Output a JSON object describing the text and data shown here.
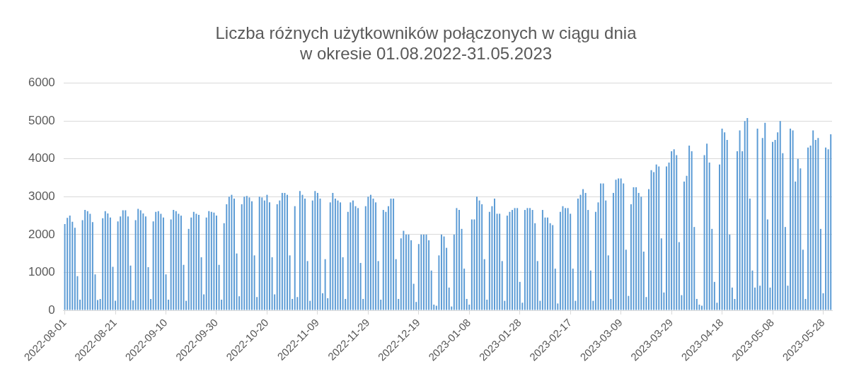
{
  "chart_data": {
    "type": "bar",
    "title": "Liczba różnych użytkowników połączonych w ciągu dnia\nw okresie 01.08.2022-31.05.2023",
    "categories": [
      "2022-08-01",
      null,
      null,
      null,
      null,
      null,
      null,
      null,
      null,
      null,
      null,
      null,
      null,
      null,
      null,
      null,
      null,
      null,
      null,
      null,
      "2022-08-21",
      null,
      null,
      null,
      null,
      null,
      null,
      null,
      null,
      null,
      null,
      null,
      null,
      null,
      null,
      null,
      null,
      null,
      null,
      null,
      "2022-09-10",
      null,
      null,
      null,
      null,
      null,
      null,
      null,
      null,
      null,
      null,
      null,
      null,
      null,
      null,
      null,
      null,
      null,
      null,
      null,
      "2022-09-30",
      null,
      null,
      null,
      null,
      null,
      null,
      null,
      null,
      null,
      null,
      null,
      null,
      null,
      null,
      null,
      null,
      null,
      null,
      null,
      "2022-10-20",
      null,
      null,
      null,
      null,
      null,
      null,
      null,
      null,
      null,
      null,
      null,
      null,
      null,
      null,
      null,
      null,
      null,
      null,
      null,
      "2022-11-09",
      null,
      null,
      null,
      null,
      null,
      null,
      null,
      null,
      null,
      null,
      null,
      null,
      null,
      null,
      null,
      null,
      null,
      null,
      null,
      "2022-11-29",
      null,
      null,
      null,
      null,
      null,
      null,
      null,
      null,
      null,
      null,
      null,
      null,
      null,
      null,
      null,
      null,
      null,
      null,
      null,
      "2022-12-19",
      null,
      null,
      null,
      null,
      null,
      null,
      null,
      null,
      null,
      null,
      null,
      null,
      null,
      null,
      null,
      null,
      null,
      null,
      null,
      "2023-01-08",
      null,
      null,
      null,
      null,
      null,
      null,
      null,
      null,
      null,
      null,
      null,
      null,
      null,
      null,
      null,
      null,
      null,
      null,
      null,
      "2023-01-28",
      null,
      null,
      null,
      null,
      null,
      null,
      null,
      null,
      null,
      null,
      null,
      null,
      null,
      null,
      null,
      null,
      null,
      null,
      null,
      "2023-02-17",
      null,
      null,
      null,
      null,
      null,
      null,
      null,
      null,
      null,
      null,
      null,
      null,
      null,
      null,
      null,
      null,
      null,
      null,
      null,
      "2023-03-09",
      null,
      null,
      null,
      null,
      null,
      null,
      null,
      null,
      null,
      null,
      null,
      null,
      null,
      null,
      null,
      null,
      null,
      null,
      null,
      "2023-03-29",
      null,
      null,
      null,
      null,
      null,
      null,
      null,
      null,
      null,
      null,
      null,
      null,
      null,
      null,
      null,
      null,
      null,
      null,
      null,
      "2023-04-18",
      null,
      null,
      null,
      null,
      null,
      null,
      null,
      null,
      null,
      null,
      null,
      null,
      null,
      null,
      null,
      null,
      null,
      null,
      null,
      "2023-05-08",
      null,
      null,
      null,
      null,
      null,
      null,
      null,
      null,
      null,
      null,
      null,
      null,
      null,
      null,
      null,
      null,
      null,
      null,
      null,
      "2023-05-28",
      null,
      null,
      null
    ],
    "values": [
      2280,
      2440,
      2500,
      2340,
      2180,
      900,
      280,
      2380,
      2650,
      2620,
      2550,
      2330,
      950,
      270,
      300,
      2430,
      2620,
      2560,
      2450,
      1150,
      250,
      2350,
      2480,
      2640,
      2640,
      2480,
      1180,
      260,
      2380,
      2680,
      2640,
      2560,
      2480,
      1140,
      300,
      2350,
      2600,
      2620,
      2550,
      2450,
      950,
      280,
      2400,
      2650,
      2620,
      2550,
      2500,
      1200,
      250,
      2150,
      2450,
      2600,
      2550,
      2520,
      1400,
      420,
      2450,
      2620,
      2600,
      2580,
      2500,
      1200,
      280,
      2300,
      2800,
      3000,
      3050,
      2950,
      1500,
      370,
      2800,
      3000,
      3020,
      2980,
      2880,
      1450,
      350,
      3000,
      2980,
      2900,
      3050,
      2850,
      1400,
      420,
      2800,
      2900,
      3100,
      3100,
      3050,
      1450,
      300,
      2750,
      350,
      3150,
      3050,
      2950,
      1300,
      250,
      2900,
      3150,
      3100,
      2950,
      450,
      1350,
      320,
      2850,
      3100,
      2950,
      2900,
      2850,
      1400,
      300,
      2600,
      2850,
      2900,
      2750,
      2700,
      1250,
      300,
      2750,
      3000,
      3050,
      2950,
      2850,
      1300,
      280,
      2650,
      2600,
      2750,
      2950,
      2950,
      1350,
      300,
      1900,
      2100,
      2000,
      2000,
      1850,
      700,
      220,
      1750,
      2000,
      2000,
      2000,
      1850,
      1050,
      150,
      120,
      1450,
      2000,
      1950,
      1650,
      600,
      100,
      2000,
      2700,
      2650,
      2150,
      1100,
      300,
      150,
      2400,
      2400,
      3000,
      2900,
      2800,
      1350,
      280,
      2600,
      2750,
      2950,
      2550,
      2550,
      1300,
      250,
      2500,
      2600,
      2650,
      2700,
      2700,
      750,
      200,
      2650,
      2700,
      2700,
      2650,
      2300,
      1300,
      250,
      2650,
      2450,
      2450,
      2300,
      2250,
      1100,
      180,
      2600,
      2750,
      2700,
      2700,
      2550,
      1100,
      250,
      2950,
      3050,
      3200,
      3100,
      2650,
      1050,
      250,
      2600,
      2850,
      3350,
      3350,
      2900,
      1450,
      300,
      3100,
      3450,
      3480,
      3480,
      3350,
      1600,
      380,
      2800,
      3250,
      3250,
      3100,
      3000,
      1550,
      350,
      3200,
      3700,
      3650,
      3850,
      3800,
      1900,
      470,
      3800,
      3900,
      4200,
      4250,
      4100,
      1800,
      400,
      3400,
      3550,
      4350,
      4200,
      2200,
      300,
      150,
      120,
      4100,
      4400,
      3900,
      2150,
      750,
      200,
      3850,
      4800,
      4700,
      4500,
      2000,
      600,
      300,
      4200,
      4750,
      4200,
      5000,
      5080,
      2950,
      1050,
      600,
      4800,
      650,
      4550,
      4950,
      2400,
      600,
      4450,
      4500,
      4700,
      5000,
      4150,
      2200,
      650,
      4800,
      4750,
      3400,
      4000,
      3750,
      1600,
      300,
      4300,
      4350,
      4750,
      4500,
      4550,
      2150,
      450,
      4300,
      4250,
      4650
    ],
    "color": "#5b9bd5",
    "ylim": [
      0,
      6000
    ],
    "yticks": [
      0,
      1000,
      2000,
      3000,
      4000,
      5000,
      6000
    ],
    "grid": "y"
  }
}
